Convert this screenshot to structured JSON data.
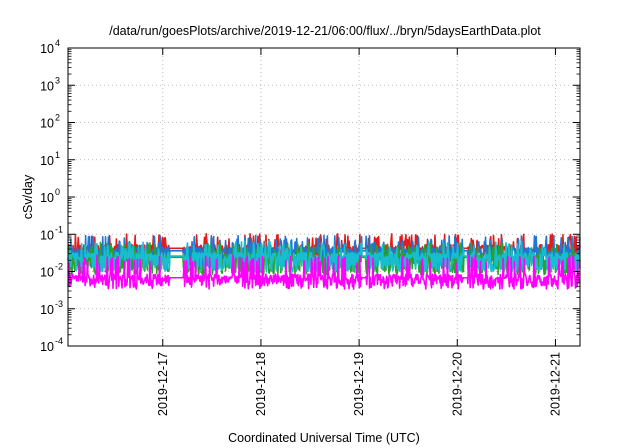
{
  "chart_data": {
    "type": "line",
    "title": "/data/run/goesPlots/archive/2019-12-21/06:00/flux/../bryn/5daysEarthData.plot",
    "xlabel": "Coordinated Universal Time (UTC)",
    "ylabel": "cSv/day",
    "y_scale": "log",
    "ylim": [
      0.0001,
      10000
    ],
    "y_ticks": [
      {
        "base": "10",
        "exp": "-4"
      },
      {
        "base": "10",
        "exp": "-3"
      },
      {
        "base": "10",
        "exp": "-2"
      },
      {
        "base": "10",
        "exp": "-1"
      },
      {
        "base": "10",
        "exp": "0"
      },
      {
        "base": "10",
        "exp": "1"
      },
      {
        "base": "10",
        "exp": "2"
      },
      {
        "base": "10",
        "exp": "3"
      },
      {
        "base": "10",
        "exp": "4"
      }
    ],
    "xlim": [
      "2019-12-16T00:50",
      "2019-12-21T06:00"
    ],
    "x_ticks": [
      "2019-12-17",
      "2019-12-18",
      "2019-12-19",
      "2019-12-20",
      "2019-12-21"
    ],
    "grid": true,
    "legend": "none",
    "series": [
      {
        "color": "#e41a1c",
        "base": 0.042,
        "low": 0.028,
        "high": 0.095
      },
      {
        "color": "#1f77d4",
        "base": 0.036,
        "low": 0.018,
        "high": 0.085
      },
      {
        "color": "#2ca02c",
        "base": 0.024,
        "low": 0.011,
        "high": 0.055
      },
      {
        "color": "#17becf",
        "base": 0.026,
        "low": 0.013,
        "high": 0.06
      },
      {
        "color": "#ff00ff",
        "base": 0.0068,
        "low": 0.0045,
        "high": 0.025
      }
    ],
    "gaps": [
      [
        "2019-12-17T01:40",
        "2019-12-17T05:00"
      ],
      [
        "2019-12-19T00:40",
        "2019-12-19T01:40"
      ],
      [
        "2019-12-20T01:30",
        "2019-12-20T02:30"
      ]
    ]
  }
}
